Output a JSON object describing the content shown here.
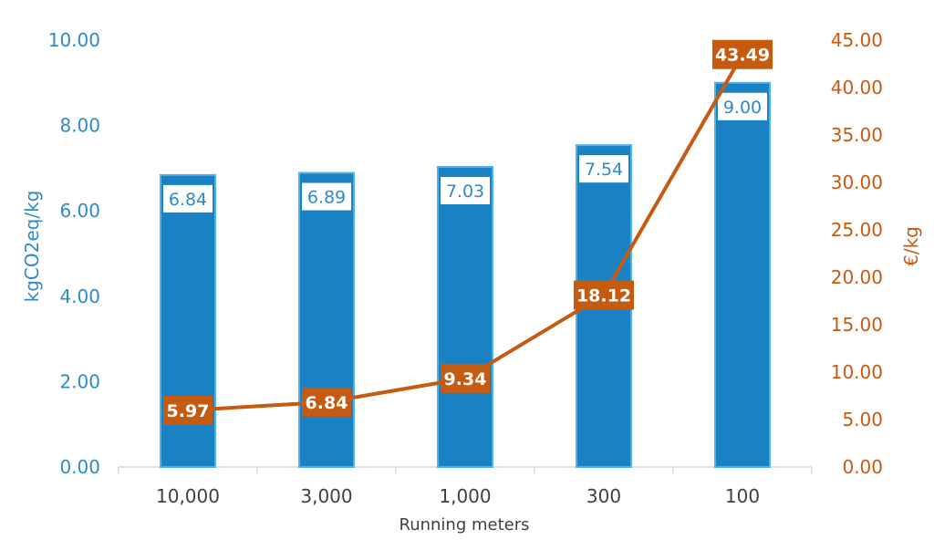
{
  "chart_data": {
    "type": "bar",
    "categories": [
      "10,000",
      "3,000",
      "1,000",
      "300",
      "100"
    ],
    "xlabel": "Running meters",
    "ylabel": "kgCO2eq/kg",
    "ylabel_right": "€/kg",
    "ylim": [
      0,
      10
    ],
    "ylim_right": [
      0,
      45
    ],
    "yticks": [
      "0.00",
      "2.00",
      "4.00",
      "6.00",
      "8.00",
      "10.00"
    ],
    "yticks_right": [
      "0.00",
      "5.00",
      "10.00",
      "15.00",
      "20.00",
      "25.00",
      "30.00",
      "35.00",
      "40.00",
      "45.00"
    ],
    "grid": false,
    "series": [
      {
        "type": "bar",
        "axis": "left",
        "values": [
          6.84,
          6.89,
          7.03,
          7.54,
          9.0
        ],
        "labels": [
          "6.84",
          "6.89",
          "7.03",
          "7.54",
          "9.00"
        ],
        "color": "#1a82c4",
        "edge_color": "#4fb3e8"
      },
      {
        "type": "line",
        "axis": "right",
        "values": [
          5.97,
          6.84,
          9.34,
          18.12,
          43.49
        ],
        "labels": [
          "5.97",
          "6.84",
          "9.34",
          "18.12",
          "43.49"
        ],
        "color": "#c55a11"
      }
    ],
    "colors": {
      "left_axis": "#2e8bc8",
      "right_axis": "#c55a11",
      "x_axis": "#404040",
      "axis_line": "#d9d9d9"
    }
  }
}
